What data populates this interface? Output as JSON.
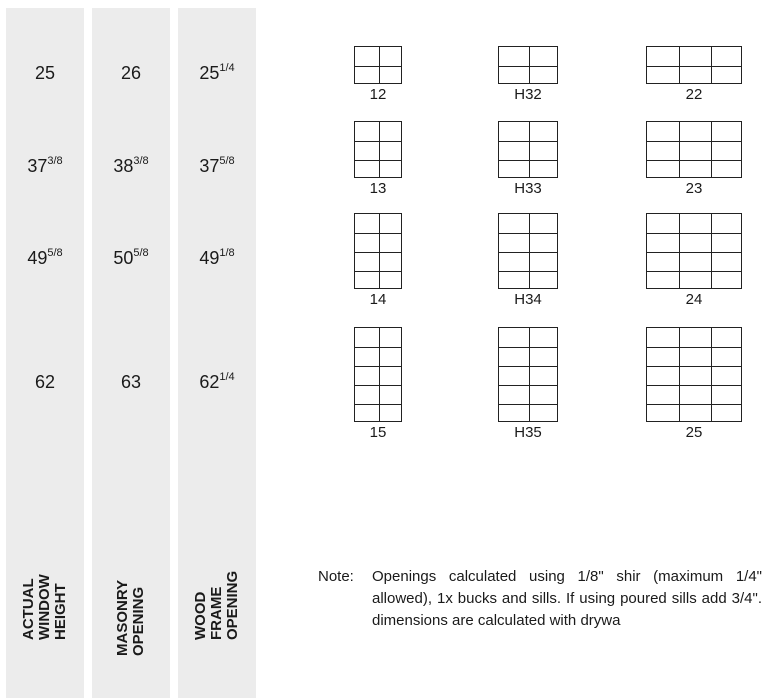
{
  "columns": [
    {
      "label": "ACTUAL WINDOW\nHEIGHT",
      "values": [
        [
          "25",
          ""
        ],
        [
          "37",
          "3/8"
        ],
        [
          "49",
          "5/8"
        ],
        [
          "62",
          ""
        ]
      ]
    },
    {
      "label": "MASONRY\nOPENING",
      "values": [
        [
          "26",
          ""
        ],
        [
          "38",
          "3/8"
        ],
        [
          "50",
          "5/8"
        ],
        [
          "63",
          ""
        ]
      ]
    },
    {
      "label": "WOOD FRAME\nOPENING",
      "values": [
        [
          "25",
          "1/4"
        ],
        [
          "37",
          "5/8"
        ],
        [
          "49",
          "1/8"
        ],
        [
          "62",
          "1/4"
        ]
      ]
    }
  ],
  "windows": [
    {
      "label": "12",
      "cols": 2,
      "rows": 2
    },
    {
      "label": "13",
      "cols": 2,
      "rows": 3
    },
    {
      "label": "14",
      "cols": 2,
      "rows": 4
    },
    {
      "label": "15",
      "cols": 2,
      "rows": 5
    },
    {
      "label": "H32",
      "cols": 2,
      "rows": 2
    },
    {
      "label": "H33",
      "cols": 2,
      "rows": 3
    },
    {
      "label": "H34",
      "cols": 2,
      "rows": 4
    },
    {
      "label": "H35",
      "cols": 2,
      "rows": 5
    },
    {
      "label": "22",
      "cols": 3,
      "rows": 2
    },
    {
      "label": "23",
      "cols": 3,
      "rows": 3
    },
    {
      "label": "24",
      "cols": 3,
      "rows": 4
    },
    {
      "label": "25",
      "cols": 3,
      "rows": 5
    }
  ],
  "note": {
    "heading": "Note:",
    "text": "Openings calculated using 1/8\" shir (maximum 1/4\" allowed), 1x bucks and sills. If using poured sills add 3/4\". dimensions are calculated with drywa"
  }
}
